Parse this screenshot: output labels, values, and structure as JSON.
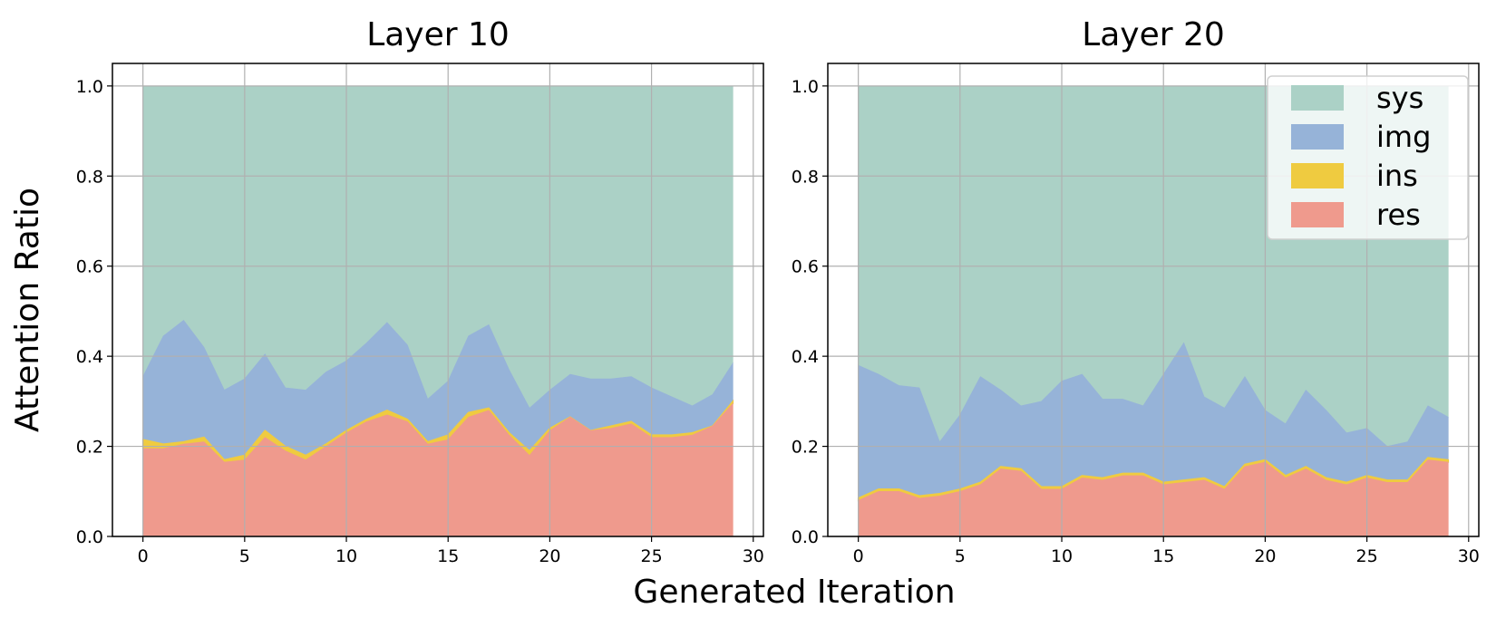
{
  "chart_data": {
    "type": "area",
    "stacked": true,
    "xlabel": "Generated Iteration",
    "ylabel": "Attention Ratio",
    "xlim": [
      -1.5,
      30.5
    ],
    "ylim": [
      0,
      1.05
    ],
    "xticks": [
      0,
      5,
      10,
      15,
      20,
      25,
      30
    ],
    "xtick_labels": [
      "0",
      "5",
      "10",
      "15",
      "20",
      "25",
      "30"
    ],
    "yticks": [
      0,
      0.2,
      0.4,
      0.6,
      0.8,
      1.0
    ],
    "ytick_labels": [
      "0.0",
      "0.2",
      "0.4",
      "0.6",
      "0.8",
      "1.0"
    ],
    "grid": true,
    "legend": {
      "position": "top-right",
      "panel": 1,
      "entries": [
        {
          "label": "sys",
          "color": "#abd1c6"
        },
        {
          "label": "img",
          "color": "#96b3d8"
        },
        {
          "label": "ins",
          "color": "#efcb40"
        },
        {
          "label": "res",
          "color": "#ef9a8d"
        }
      ]
    },
    "series_colors": {
      "sys": "#abd1c6",
      "img": "#96b3d8",
      "ins": "#efcb40",
      "res": "#ef9a8d"
    },
    "panels": [
      {
        "title": "Layer 10",
        "x": [
          0,
          1,
          2,
          3,
          4,
          5,
          6,
          7,
          8,
          9,
          10,
          11,
          12,
          13,
          14,
          15,
          16,
          17,
          18,
          19,
          20,
          21,
          22,
          23,
          24,
          25,
          26,
          27,
          28,
          29
        ],
        "res_cum": [
          0.195,
          0.195,
          0.205,
          0.21,
          0.165,
          0.17,
          0.22,
          0.19,
          0.17,
          0.2,
          0.23,
          0.255,
          0.27,
          0.255,
          0.205,
          0.215,
          0.265,
          0.28,
          0.225,
          0.18,
          0.235,
          0.265,
          0.235,
          0.24,
          0.25,
          0.22,
          0.22,
          0.225,
          0.245,
          0.295
        ],
        "ins_cum": [
          0.215,
          0.205,
          0.21,
          0.22,
          0.17,
          0.18,
          0.235,
          0.2,
          0.18,
          0.205,
          0.235,
          0.26,
          0.28,
          0.26,
          0.21,
          0.225,
          0.275,
          0.285,
          0.23,
          0.19,
          0.24,
          0.265,
          0.235,
          0.245,
          0.255,
          0.225,
          0.225,
          0.23,
          0.245,
          0.3
        ],
        "img_cum": [
          0.355,
          0.445,
          0.48,
          0.42,
          0.325,
          0.35,
          0.405,
          0.33,
          0.325,
          0.365,
          0.39,
          0.43,
          0.475,
          0.425,
          0.305,
          0.345,
          0.445,
          0.47,
          0.37,
          0.285,
          0.325,
          0.36,
          0.35,
          0.35,
          0.355,
          0.33,
          0.31,
          0.29,
          0.315,
          0.385
        ],
        "sys_cum": [
          1,
          1,
          1,
          1,
          1,
          1,
          1,
          1,
          1,
          1,
          1,
          1,
          1,
          1,
          1,
          1,
          1,
          1,
          1,
          1,
          1,
          1,
          1,
          1,
          1,
          1,
          1,
          1,
          1,
          1
        ]
      },
      {
        "title": "Layer 20",
        "x": [
          0,
          1,
          2,
          3,
          4,
          5,
          6,
          7,
          8,
          9,
          10,
          11,
          12,
          13,
          14,
          15,
          16,
          17,
          18,
          19,
          20,
          21,
          22,
          23,
          24,
          25,
          26,
          27,
          28,
          29
        ],
        "res_cum": [
          0.08,
          0.1,
          0.1,
          0.085,
          0.09,
          0.1,
          0.115,
          0.15,
          0.145,
          0.105,
          0.105,
          0.13,
          0.125,
          0.135,
          0.135,
          0.115,
          0.12,
          0.125,
          0.105,
          0.155,
          0.165,
          0.13,
          0.15,
          0.125,
          0.115,
          0.13,
          0.12,
          0.12,
          0.17,
          0.165
        ],
        "ins_cum": [
          0.085,
          0.105,
          0.105,
          0.09,
          0.095,
          0.105,
          0.12,
          0.155,
          0.15,
          0.11,
          0.11,
          0.135,
          0.13,
          0.14,
          0.14,
          0.12,
          0.125,
          0.13,
          0.11,
          0.16,
          0.17,
          0.135,
          0.155,
          0.13,
          0.12,
          0.135,
          0.125,
          0.125,
          0.175,
          0.17
        ],
        "img_cum": [
          0.38,
          0.36,
          0.335,
          0.33,
          0.21,
          0.27,
          0.355,
          0.325,
          0.29,
          0.3,
          0.345,
          0.36,
          0.305,
          0.305,
          0.29,
          0.36,
          0.43,
          0.31,
          0.285,
          0.355,
          0.28,
          0.25,
          0.325,
          0.28,
          0.23,
          0.24,
          0.2,
          0.21,
          0.29,
          0.265
        ],
        "sys_cum": [
          1,
          1,
          1,
          1,
          1,
          1,
          1,
          1,
          1,
          1,
          1,
          1,
          1,
          1,
          1,
          1,
          1,
          1,
          1,
          1,
          1,
          1,
          1,
          1,
          1,
          1,
          1,
          1,
          1,
          1
        ]
      }
    ]
  }
}
